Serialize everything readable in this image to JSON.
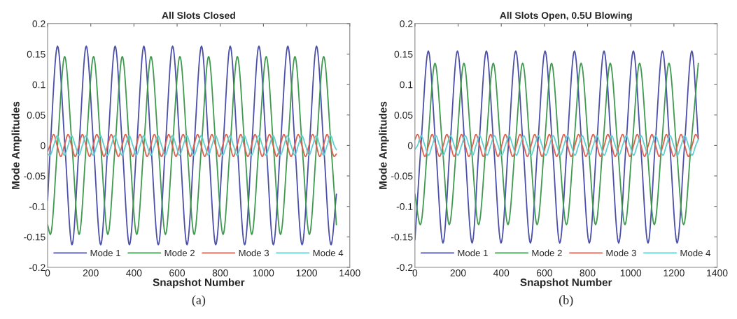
{
  "chart_data": [
    {
      "type": "line",
      "title": "All Slots Closed",
      "xlabel": "Snapshot Number",
      "ylabel": "Mode Amplitudes",
      "annotations": [
        "(a)"
      ],
      "xlim": [
        0,
        1400
      ],
      "xticks": [
        0,
        200,
        400,
        600,
        800,
        1000,
        1200,
        1400
      ],
      "ylim": [
        -0.2,
        0.2
      ],
      "yticks": [
        -0.2,
        -0.15,
        -0.1,
        -0.05,
        0,
        0.05,
        0.1,
        0.15,
        0.2
      ],
      "grid": false,
      "legend": "bottom",
      "marker": "none",
      "line_style": "solid",
      "series": [
        {
          "name": "Mode 1",
          "color": "#4b4fa8",
          "x": [
            0,
            13,
            46,
            80,
            113,
            146,
            179,
            213,
            246,
            279,
            313,
            346,
            379,
            413,
            446,
            479,
            513,
            546,
            579,
            613,
            646,
            679,
            713,
            746,
            779,
            813,
            846,
            879,
            913,
            946,
            979,
            1013,
            1046,
            1079,
            1113,
            1146,
            1179,
            1213,
            1246,
            1279,
            1313,
            1338
          ],
          "values": [
            -0.09,
            0,
            0.163,
            0,
            -0.163,
            0,
            0.163,
            0,
            -0.163,
            0,
            0.163,
            0,
            -0.163,
            0,
            0.163,
            0,
            -0.163,
            0,
            0.163,
            0,
            -0.163,
            0,
            0.163,
            0,
            -0.163,
            0,
            0.163,
            0,
            -0.163,
            0,
            0.163,
            0,
            -0.163,
            0,
            0.163,
            0,
            -0.163,
            0,
            0.163,
            0,
            -0.163,
            -0.08
          ]
        },
        {
          "name": "Mode 2",
          "color": "#3f9a50",
          "x": [
            0,
            13,
            46,
            79,
            113,
            146,
            179,
            213,
            246,
            279,
            313,
            346,
            379,
            413,
            446,
            479,
            513,
            546,
            579,
            613,
            646,
            679,
            713,
            746,
            779,
            813,
            846,
            879,
            913,
            946,
            979,
            1013,
            1046,
            1079,
            1113,
            1146,
            1179,
            1213,
            1246,
            1279,
            1313,
            1338
          ],
          "values": [
            -0.13,
            -0.146,
            0,
            0.146,
            0,
            -0.146,
            0,
            0.146,
            0,
            -0.146,
            0,
            0.146,
            0,
            -0.146,
            0,
            0.146,
            0,
            -0.146,
            0,
            0.146,
            0,
            -0.146,
            0,
            0.146,
            0,
            -0.146,
            0,
            0.146,
            0,
            -0.146,
            0,
            0.146,
            0,
            -0.146,
            0,
            0.146,
            0,
            -0.146,
            0,
            0.146,
            0,
            -0.13
          ]
        },
        {
          "name": "Mode 3",
          "color": "#e0604f",
          "x": [
            0,
            11,
            28,
            44,
            61,
            78,
            95,
            111,
            128,
            145,
            161,
            178,
            195,
            211,
            228,
            245,
            261,
            278,
            295,
            311,
            328,
            345,
            361,
            378,
            395,
            411,
            428,
            445,
            461,
            478,
            495,
            511,
            528,
            545,
            561,
            578,
            595,
            611,
            628,
            645,
            661,
            678,
            695,
            711,
            728,
            745,
            761,
            778,
            795,
            811,
            828,
            845,
            861,
            878,
            895,
            911,
            928,
            945,
            961,
            978,
            995,
            1011,
            1028,
            1045,
            1061,
            1078,
            1095,
            1111,
            1128,
            1145,
            1161,
            1178,
            1195,
            1211,
            1228,
            1245,
            1261,
            1278,
            1295,
            1311,
            1328,
            1338
          ],
          "values": [
            -0.01,
            0,
            0.018,
            0,
            -0.018,
            0,
            0.018,
            0,
            -0.018,
            0,
            0.018,
            0,
            -0.018,
            0,
            0.018,
            0,
            -0.018,
            0,
            0.018,
            0,
            -0.018,
            0,
            0.018,
            0,
            -0.018,
            0,
            0.018,
            0,
            -0.018,
            0,
            0.018,
            0,
            -0.018,
            0,
            0.018,
            0,
            -0.018,
            0,
            0.018,
            0,
            -0.018,
            0,
            0.018,
            0,
            -0.018,
            0,
            0.018,
            0,
            -0.018,
            0,
            0.018,
            0,
            -0.018,
            0,
            0.018,
            0,
            -0.018,
            0,
            0.018,
            0,
            -0.018,
            0,
            0.018,
            0,
            -0.018,
            0,
            0.018,
            0,
            -0.018,
            0,
            0.018,
            0,
            -0.018,
            0,
            0.018,
            0,
            -0.018,
            0,
            0.018,
            0,
            -0.018,
            -0.014
          ]
        },
        {
          "name": "Mode 4",
          "color": "#5fcfcf",
          "x": [
            0,
            11,
            28,
            45,
            61,
            78,
            95,
            111,
            128,
            145,
            161,
            178,
            195,
            211,
            228,
            245,
            261,
            278,
            295,
            311,
            328,
            345,
            361,
            378,
            395,
            411,
            428,
            445,
            461,
            478,
            495,
            511,
            528,
            545,
            561,
            578,
            595,
            611,
            628,
            645,
            661,
            678,
            695,
            711,
            728,
            745,
            761,
            778,
            795,
            811,
            828,
            845,
            861,
            878,
            895,
            911,
            928,
            945,
            961,
            978,
            995,
            1011,
            1028,
            1045,
            1061,
            1078,
            1095,
            1111,
            1128,
            1145,
            1161,
            1178,
            1195,
            1211,
            1228,
            1245,
            1261,
            1278,
            1295,
            1311,
            1328,
            1338
          ],
          "values": [
            -0.014,
            -0.016,
            0,
            0.016,
            0,
            -0.016,
            0,
            0.016,
            0,
            -0.016,
            0,
            0.016,
            0,
            -0.016,
            0,
            0.016,
            0,
            -0.016,
            0,
            0.016,
            0,
            -0.016,
            0,
            0.016,
            0,
            -0.016,
            0,
            0.016,
            0,
            -0.016,
            0,
            0.016,
            0,
            -0.016,
            0,
            0.016,
            0,
            -0.016,
            0,
            0.016,
            0,
            -0.016,
            0,
            0.016,
            0,
            -0.016,
            0,
            0.016,
            0,
            -0.016,
            0,
            0.016,
            0,
            -0.016,
            0,
            0.016,
            0,
            -0.016,
            0,
            0.016,
            0,
            -0.016,
            0,
            0.016,
            0,
            -0.016,
            0,
            0.016,
            0,
            -0.016,
            0,
            0.016,
            0,
            -0.016,
            0,
            0.016,
            0,
            -0.016,
            0,
            0.016,
            0,
            -0.007
          ]
        }
      ]
    },
    {
      "type": "line",
      "title": "All Slots Open, 0.5U Blowing",
      "xlabel": "Snapshot Number",
      "ylabel": "Mode Amplitudes",
      "annotations": [
        "(b)"
      ],
      "xlim": [
        0,
        1400
      ],
      "xticks": [
        0,
        200,
        400,
        600,
        800,
        1000,
        1200,
        1400
      ],
      "ylim": [
        -0.2,
        0.2
      ],
      "yticks": [
        -0.2,
        -0.15,
        -0.1,
        -0.05,
        0,
        0.05,
        0.1,
        0.15,
        0.2
      ],
      "grid": false,
      "legend": "bottom",
      "marker": "none",
      "line_style": "solid",
      "series": [
        {
          "name": "Mode 1",
          "color": "#4b4fa8",
          "x": [
            0,
            28,
            62,
            96,
            130,
            163,
            197,
            231,
            265,
            297,
            331,
            365,
            399,
            433,
            467,
            501,
            535,
            569,
            603,
            637,
            671,
            705,
            739,
            773,
            808,
            842,
            876,
            910,
            944,
            978,
            1012,
            1046,
            1080,
            1113,
            1147,
            1181,
            1215,
            1249,
            1283,
            1313
          ],
          "values": [
            -0.155,
            0,
            0.155,
            0,
            -0.16,
            0,
            0.155,
            0,
            -0.16,
            0,
            0.155,
            0,
            -0.16,
            0,
            0.155,
            0,
            -0.16,
            0,
            0.155,
            0,
            -0.16,
            0,
            0.155,
            0,
            -0.16,
            0,
            0.155,
            0,
            -0.16,
            0,
            0.155,
            0,
            -0.16,
            0,
            0.155,
            0,
            -0.16,
            0,
            0.155,
            0.01
          ]
        },
        {
          "name": "Mode 2",
          "color": "#3f9a50",
          "x": [
            0,
            25,
            59,
            93,
            127,
            159,
            193,
            227,
            261,
            295,
            329,
            363,
            397,
            431,
            465,
            499,
            533,
            566,
            600,
            633,
            667,
            702,
            736,
            770,
            804,
            837,
            871,
            905,
            939,
            973,
            1007,
            1041,
            1075,
            1109,
            1143,
            1177,
            1211,
            1245,
            1279,
            1313
          ],
          "values": [
            -0.08,
            -0.13,
            0,
            0.135,
            0,
            -0.13,
            0,
            0.135,
            0,
            -0.13,
            0,
            0.135,
            0,
            -0.13,
            0,
            0.135,
            0,
            -0.13,
            0,
            0.135,
            0,
            -0.13,
            0,
            0.135,
            0,
            -0.13,
            0,
            0.135,
            0,
            -0.13,
            0,
            0.135,
            0,
            -0.13,
            0,
            0.135,
            0,
            -0.13,
            0,
            0.135
          ]
        },
        {
          "name": "Mode 3",
          "color": "#e0604f",
          "x": [
            0,
            12,
            29,
            46,
            63,
            80,
            97,
            114,
            131,
            148,
            165,
            182,
            199,
            216,
            233,
            250,
            267,
            283,
            300,
            317,
            334,
            351,
            368,
            385,
            402,
            419,
            436,
            453,
            470,
            487,
            504,
            521,
            538,
            555,
            572,
            589,
            606,
            623,
            640,
            657,
            674,
            690,
            707,
            724,
            741,
            758,
            775,
            792,
            809,
            826,
            843,
            860,
            877,
            894,
            911,
            928,
            945,
            962,
            979,
            996,
            1013,
            1030,
            1047,
            1064,
            1081,
            1098,
            1115,
            1132,
            1149,
            1165,
            1182,
            1199,
            1216,
            1233,
            1250,
            1267,
            1284,
            1301,
            1313
          ],
          "values": [
            0.01,
            0.018,
            0,
            -0.018,
            0,
            0.018,
            0,
            -0.018,
            0,
            0.018,
            0,
            -0.018,
            0,
            0.018,
            0,
            -0.018,
            0,
            0.018,
            0,
            -0.018,
            0,
            0.018,
            0,
            -0.018,
            0,
            0.018,
            0,
            -0.018,
            0,
            0.018,
            0,
            -0.018,
            0,
            0.018,
            0,
            -0.018,
            0,
            0.018,
            0,
            -0.018,
            0,
            0.018,
            0,
            -0.018,
            0,
            0.018,
            0,
            -0.018,
            0,
            0.018,
            0,
            -0.018,
            0,
            0.018,
            0,
            -0.018,
            0,
            0.018,
            0,
            -0.018,
            0,
            0.018,
            0,
            -0.018,
            0,
            0.018,
            0,
            -0.018,
            0,
            0.018,
            0,
            -0.018,
            0,
            0.018,
            0,
            -0.018,
            0,
            0.018,
            0.012
          ]
        },
        {
          "name": "Mode 4",
          "color": "#5fcfcf",
          "x": [
            0,
            12,
            29,
            46,
            63,
            80,
            97,
            114,
            131,
            148,
            165,
            182,
            199,
            216,
            233,
            250,
            267,
            283,
            300,
            317,
            334,
            351,
            368,
            385,
            402,
            419,
            436,
            453,
            470,
            487,
            504,
            521,
            538,
            555,
            572,
            589,
            606,
            623,
            640,
            657,
            674,
            690,
            707,
            724,
            741,
            758,
            775,
            792,
            809,
            826,
            843,
            860,
            877,
            894,
            911,
            928,
            945,
            962,
            979,
            996,
            1013,
            1030,
            1047,
            1064,
            1081,
            1098,
            1115,
            1132,
            1149,
            1165,
            1182,
            1199,
            1216,
            1233,
            1250,
            1267,
            1284,
            1301,
            1313
          ],
          "values": [
            -0.006,
            0,
            0.016,
            0,
            -0.016,
            0,
            0.016,
            0,
            -0.016,
            0,
            0.016,
            0,
            -0.016,
            0,
            0.016,
            0,
            -0.016,
            0,
            0.016,
            0,
            -0.016,
            0,
            0.016,
            0,
            -0.016,
            0,
            0.016,
            0,
            -0.016,
            0,
            0.016,
            0,
            -0.016,
            0,
            0.016,
            0,
            -0.016,
            0,
            0.016,
            0,
            -0.016,
            0,
            0.016,
            0,
            -0.016,
            0,
            0.016,
            0,
            -0.016,
            0,
            0.016,
            0,
            -0.016,
            0,
            0.016,
            0,
            -0.016,
            0,
            0.016,
            0,
            -0.016,
            0,
            0.016,
            0,
            -0.016,
            0,
            0.016,
            0,
            -0.016,
            0,
            0.016,
            0,
            -0.016,
            0,
            0.016,
            0,
            -0.016,
            0,
            0.01
          ]
        }
      ]
    }
  ]
}
